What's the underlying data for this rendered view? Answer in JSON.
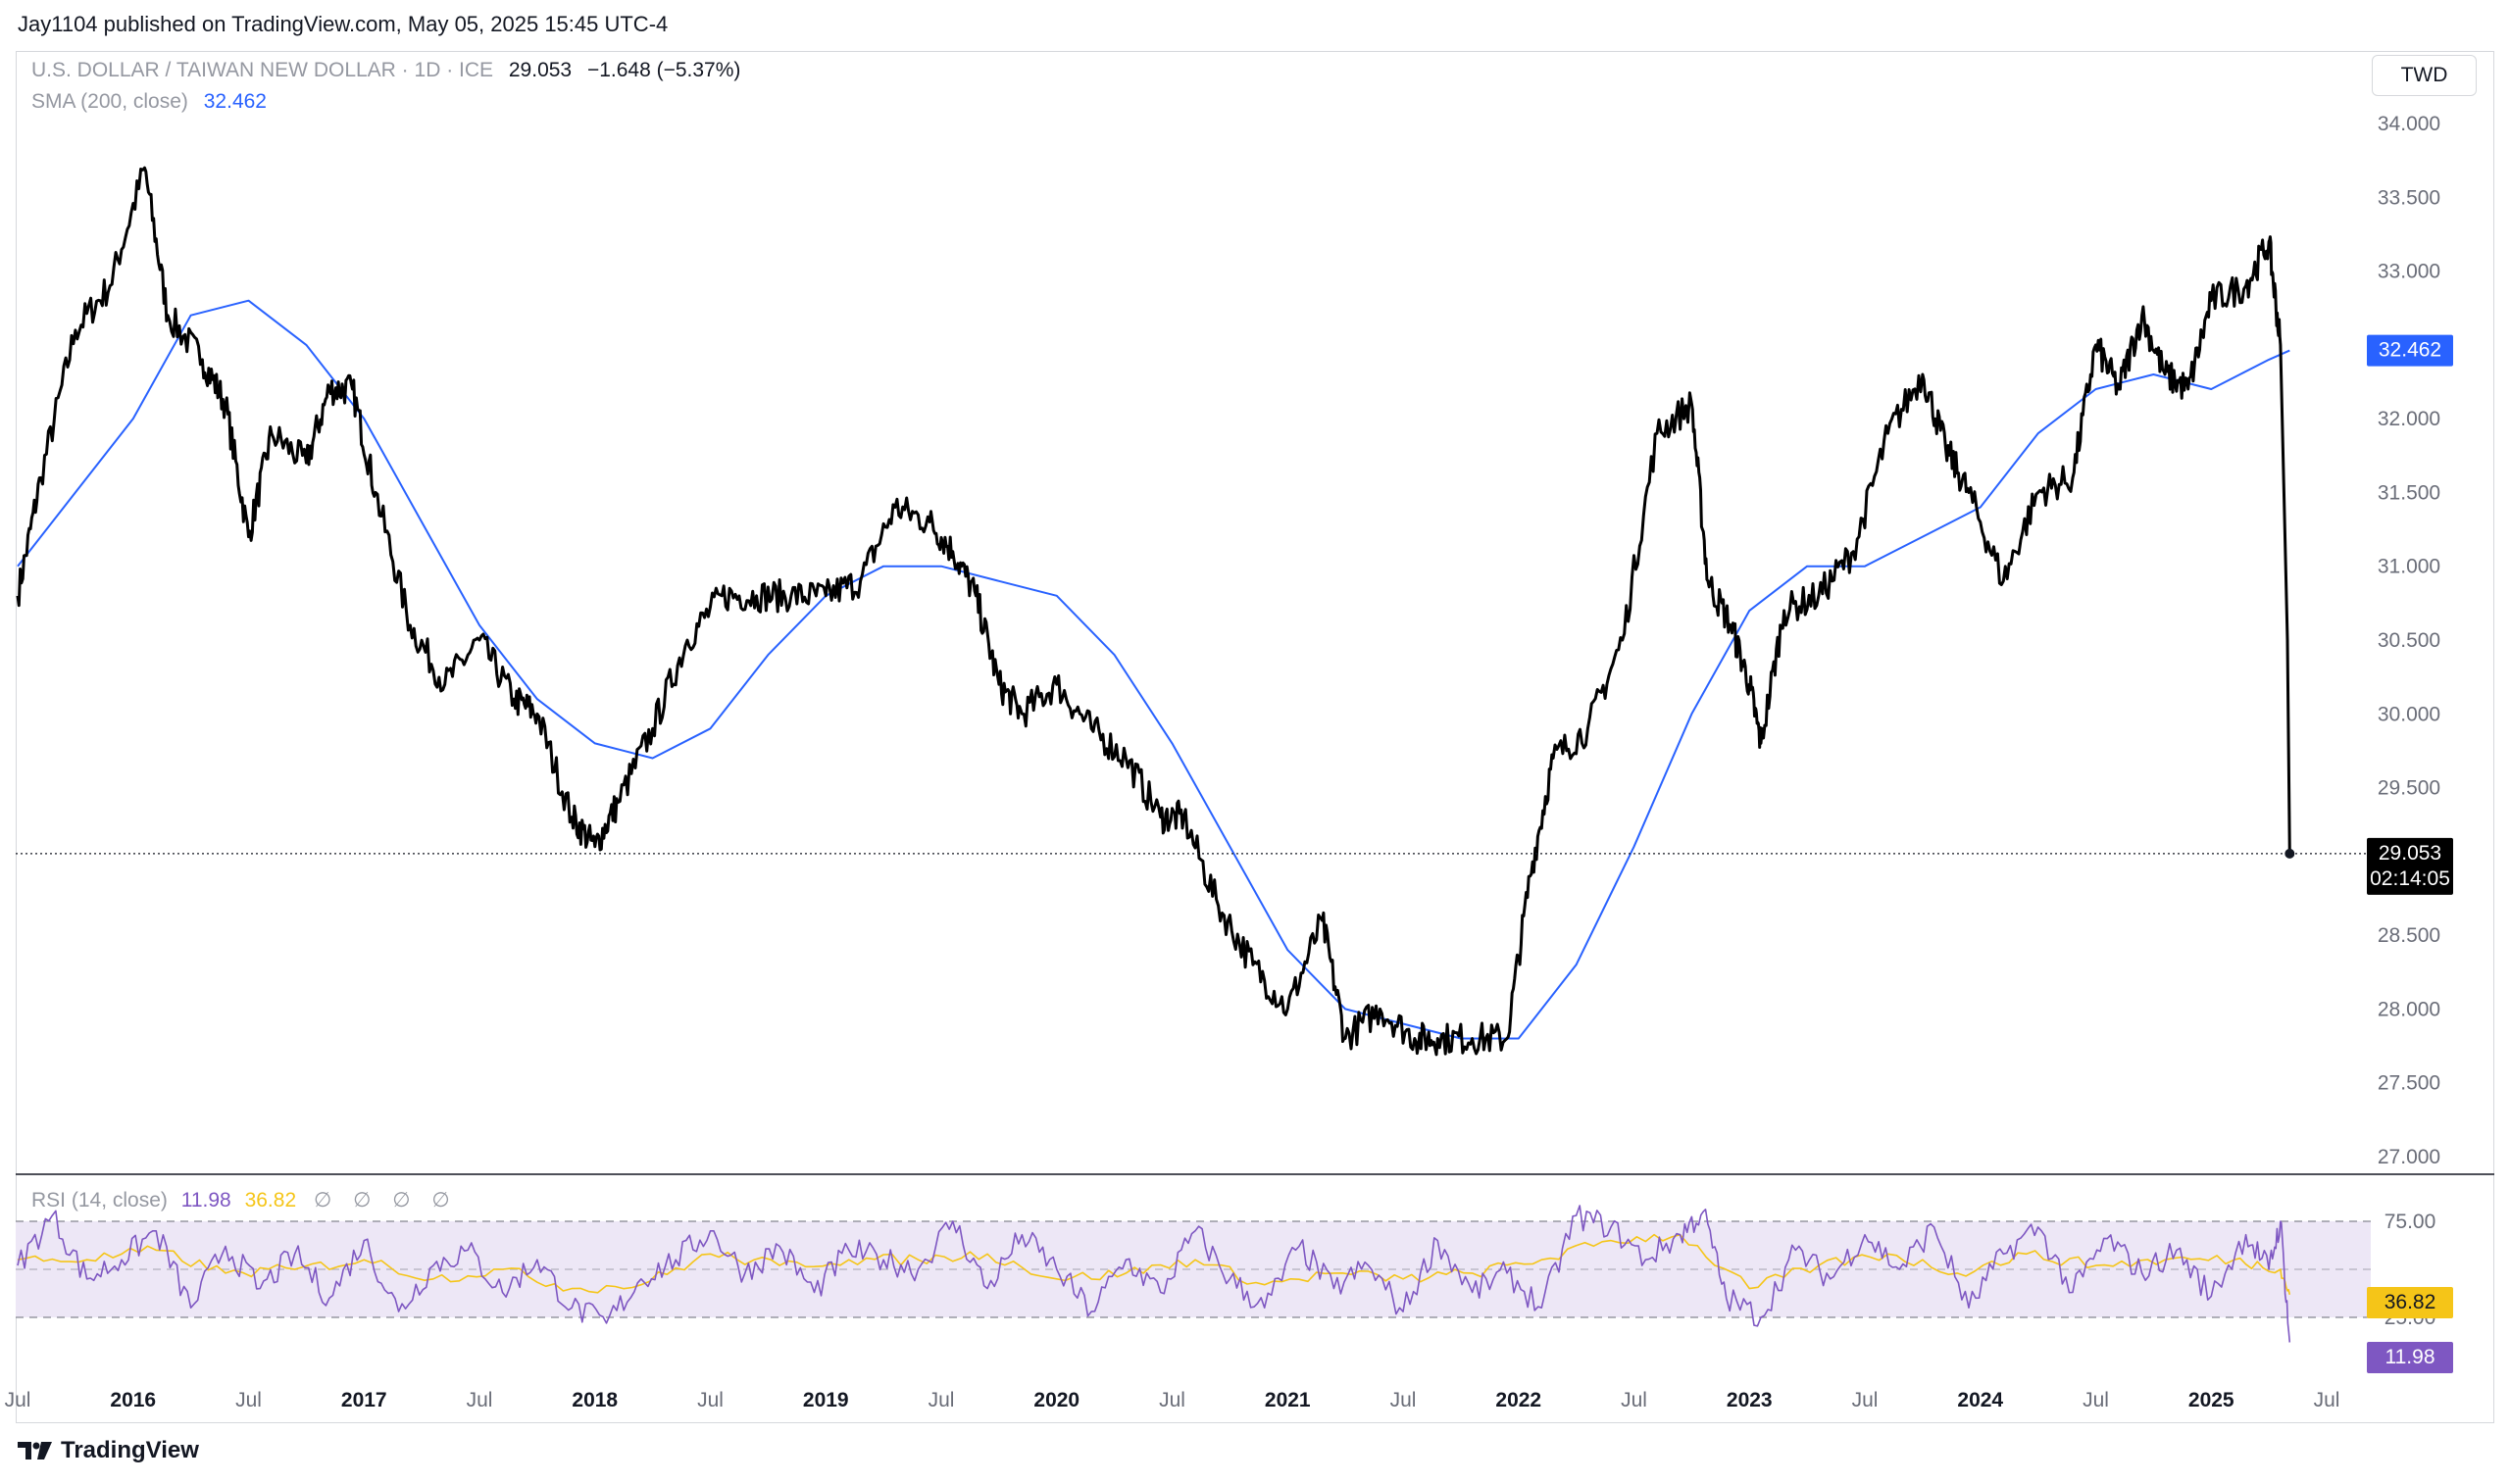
{
  "header": {
    "published_by": "Jay1104 published on TradingView.com, May 05, 2025 15:45 UTC-4"
  },
  "legend": {
    "symbol": "U.S. DOLLAR / TAIWAN NEW DOLLAR · 1D · ICE",
    "last": "29.053",
    "change": "−1.648 (−5.37%)",
    "sma_label": "SMA (200, close)",
    "sma_value": "32.462",
    "rsi_label": "RSI (14, close)",
    "rsi_value": "11.98",
    "rsi_ma_value": "36.82",
    "rsi_icons": "∅ ∅ ∅ ∅"
  },
  "currency_button": "TWD",
  "footer": {
    "brand": "TradingView"
  },
  "colors": {
    "price": "#000000",
    "sma": "#2962ff",
    "rsi": "#7e57c2",
    "rsi_ma": "#f5c518",
    "band": "#ede7f6"
  },
  "chart_data": [
    {
      "type": "line",
      "title": "U.S. DOLLAR / TAIWAN NEW DOLLAR · 1D · ICE",
      "ylim": [
        27.0,
        34.0
      ],
      "y_ticks": [
        "34.000",
        "33.500",
        "33.000",
        "32.500",
        "32.000",
        "31.500",
        "31.000",
        "30.500",
        "30.000",
        "29.500",
        "29.000",
        "28.500",
        "28.000",
        "27.500",
        "27.000"
      ],
      "x_ticks": [
        "Jul",
        "2016",
        "Jul",
        "2017",
        "Jul",
        "2018",
        "Jul",
        "2019",
        "Jul",
        "2020",
        "Jul",
        "2021",
        "Jul",
        "2022",
        "Jul",
        "2023",
        "Jul",
        "2024",
        "Jul",
        "2025",
        "Jul"
      ],
      "last_price_label": "29.053",
      "countdown": "02:14:05",
      "sma_label_value": "32.462",
      "series": [
        {
          "name": "U.S. DOLLAR / TAIWAN NEW DOLLAR",
          "x": [
            2015.5,
            2015.6,
            2015.75,
            2015.9,
            2016.05,
            2016.15,
            2016.3,
            2016.4,
            2016.5,
            2016.6,
            2016.75,
            2016.85,
            2016.95,
            2017.05,
            2017.2,
            2017.35,
            2017.5,
            2017.65,
            2017.75,
            2017.9,
            2018.0,
            2018.1,
            2018.25,
            2018.4,
            2018.55,
            2018.7,
            2018.85,
            2019.0,
            2019.15,
            2019.3,
            2019.45,
            2019.55,
            2019.65,
            2019.75,
            2019.85,
            2020.0,
            2020.15,
            2020.3,
            2020.45,
            2020.55,
            2020.7,
            2020.85,
            2021.0,
            2021.15,
            2021.25,
            2021.4,
            2021.55,
            2021.65,
            2021.8,
            2021.95,
            2022.05,
            2022.15,
            2022.3,
            2022.45,
            2022.6,
            2022.75,
            2022.82,
            2022.92,
            2023.0,
            2023.05,
            2023.15,
            2023.3,
            2023.45,
            2023.6,
            2023.75,
            2023.85,
            2023.95,
            2024.1,
            2024.25,
            2024.4,
            2024.5,
            2024.6,
            2024.7,
            2024.8,
            2024.9,
            2025.0,
            2025.15,
            2025.25,
            2025.3,
            2025.33,
            2025.34
          ],
          "values": [
            30.8,
            31.6,
            32.6,
            32.9,
            33.7,
            32.7,
            32.4,
            32.1,
            31.2,
            31.9,
            31.7,
            32.2,
            32.2,
            31.5,
            30.6,
            30.2,
            30.5,
            30.1,
            30.0,
            29.3,
            29.1,
            29.4,
            29.9,
            30.5,
            30.8,
            30.8,
            30.8,
            30.8,
            30.9,
            31.4,
            31.3,
            31.1,
            30.8,
            30.2,
            30.0,
            30.2,
            29.9,
            29.7,
            29.3,
            29.3,
            28.7,
            28.3,
            28.0,
            28.6,
            27.8,
            28.0,
            27.8,
            27.8,
            27.8,
            27.8,
            28.9,
            29.7,
            29.9,
            30.5,
            31.9,
            32.1,
            30.9,
            30.6,
            30.2,
            29.8,
            30.7,
            30.8,
            31.1,
            31.9,
            32.3,
            31.8,
            31.5,
            30.9,
            31.5,
            31.6,
            32.5,
            32.2,
            32.7,
            32.3,
            32.2,
            32.8,
            32.9,
            33.2,
            32.5,
            30.5,
            29.053
          ]
        },
        {
          "name": "SMA (200, close)",
          "x": [
            2015.5,
            2015.75,
            2016.0,
            2016.25,
            2016.5,
            2016.75,
            2017.0,
            2017.25,
            2017.5,
            2017.75,
            2018.0,
            2018.25,
            2018.5,
            2018.75,
            2019.0,
            2019.25,
            2019.5,
            2019.75,
            2020.0,
            2020.25,
            2020.5,
            2020.75,
            2021.0,
            2021.25,
            2021.5,
            2021.75,
            2022.0,
            2022.25,
            2022.5,
            2022.75,
            2023.0,
            2023.25,
            2023.5,
            2023.75,
            2024.0,
            2024.25,
            2024.5,
            2024.75,
            2025.0,
            2025.25,
            2025.34
          ],
          "values": [
            31.0,
            31.5,
            32.0,
            32.7,
            32.8,
            32.5,
            32.0,
            31.3,
            30.6,
            30.1,
            29.8,
            29.7,
            29.9,
            30.4,
            30.8,
            31.0,
            31.0,
            30.9,
            30.8,
            30.4,
            29.8,
            29.1,
            28.4,
            28.0,
            27.9,
            27.8,
            27.8,
            28.3,
            29.1,
            30.0,
            30.7,
            31.0,
            31.0,
            31.2,
            31.4,
            31.9,
            32.2,
            32.3,
            32.2,
            32.4,
            32.462
          ]
        }
      ]
    },
    {
      "type": "line",
      "title": "RSI (14, close)",
      "ylim": [
        0,
        100
      ],
      "y_ticks": [
        "75.00",
        "25.00"
      ],
      "bands": [
        25,
        50,
        75
      ],
      "rsi_label_value": "11.98",
      "rsi_ma_label_value": "36.82",
      "series": [
        {
          "name": "RSI (14, close)",
          "x": [
            2015.5,
            2015.65,
            2015.8,
            2015.95,
            2016.1,
            2016.25,
            2016.4,
            2016.55,
            2016.7,
            2016.85,
            2017.0,
            2017.15,
            2017.3,
            2017.45,
            2017.6,
            2017.75,
            2017.9,
            2018.05,
            2018.2,
            2018.35,
            2018.5,
            2018.65,
            2018.8,
            2018.95,
            2019.1,
            2019.25,
            2019.4,
            2019.55,
            2019.7,
            2019.85,
            2020.0,
            2020.15,
            2020.3,
            2020.45,
            2020.6,
            2020.75,
            2020.9,
            2021.05,
            2021.2,
            2021.35,
            2021.5,
            2021.65,
            2021.8,
            2021.95,
            2022.1,
            2022.25,
            2022.4,
            2022.55,
            2022.7,
            2022.8,
            2022.9,
            2023.05,
            2023.2,
            2023.35,
            2023.5,
            2023.65,
            2023.8,
            2023.95,
            2024.1,
            2024.25,
            2024.4,
            2024.55,
            2024.7,
            2024.85,
            2025.0,
            2025.15,
            2025.25,
            2025.3,
            2025.34
          ],
          "values": [
            52,
            78,
            45,
            55,
            70,
            30,
            62,
            40,
            58,
            35,
            65,
            28,
            52,
            60,
            38,
            55,
            30,
            22,
            45,
            55,
            70,
            48,
            62,
            38,
            60,
            55,
            50,
            75,
            40,
            68,
            50,
            28,
            55,
            38,
            70,
            45,
            30,
            62,
            40,
            52,
            28,
            65,
            38,
            48,
            30,
            78,
            72,
            55,
            68,
            80,
            35,
            25,
            60,
            45,
            68,
            50,
            72,
            30,
            58,
            72,
            38,
            66,
            48,
            60,
            36,
            68,
            50,
            75,
            11.98
          ]
        },
        {
          "name": "RSI MA",
          "x": [
            2015.5,
            2015.8,
            2016.1,
            2016.4,
            2016.7,
            2017.0,
            2017.3,
            2017.6,
            2017.9,
            2018.2,
            2018.5,
            2018.8,
            2019.1,
            2019.4,
            2019.7,
            2020.0,
            2020.3,
            2020.6,
            2020.9,
            2021.2,
            2021.5,
            2021.8,
            2022.1,
            2022.4,
            2022.7,
            2023.0,
            2023.3,
            2023.6,
            2023.9,
            2024.2,
            2024.5,
            2024.8,
            2025.1,
            2025.3,
            2025.34
          ],
          "values": [
            55,
            55,
            60,
            48,
            50,
            55,
            45,
            50,
            40,
            42,
            58,
            52,
            55,
            55,
            58,
            45,
            48,
            55,
            42,
            48,
            45,
            48,
            55,
            65,
            68,
            40,
            52,
            58,
            48,
            58,
            52,
            55,
            55,
            50,
            36.82
          ]
        }
      ]
    }
  ]
}
